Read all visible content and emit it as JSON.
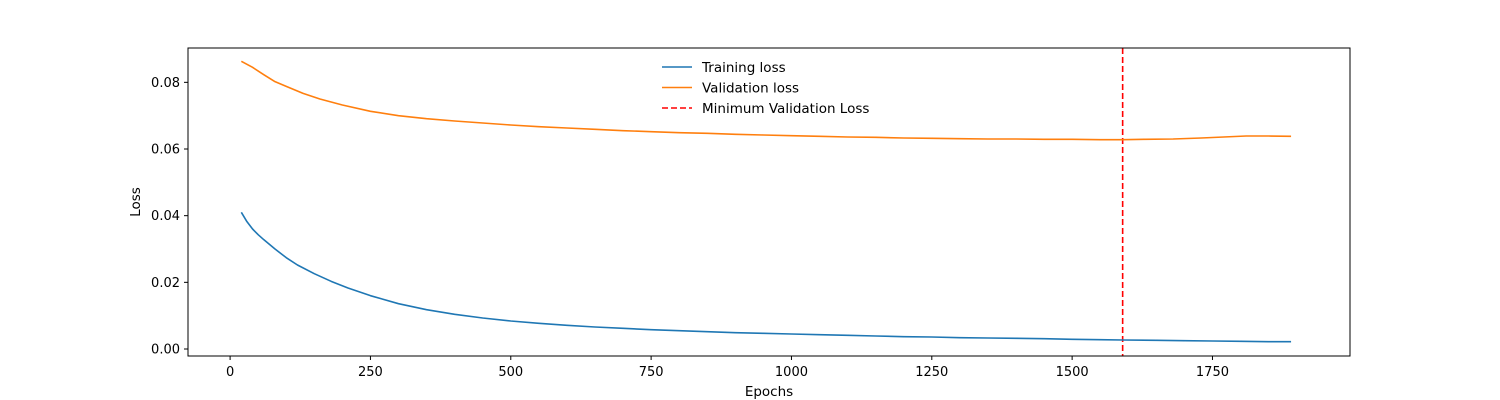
{
  "chart_data": {
    "type": "line",
    "xlabel": "Epochs",
    "ylabel": "Loss",
    "xlim": [
      -75,
      1995
    ],
    "ylim": [
      -0.0021,
      0.0903
    ],
    "xticks": [
      0,
      250,
      500,
      750,
      1000,
      1250,
      1500,
      1750
    ],
    "yticks": [
      0.0,
      0.02,
      0.04,
      0.06,
      0.08
    ],
    "ytick_format": 2,
    "grid": false,
    "legend": {
      "placement": "upper center",
      "frameon": false
    },
    "series": [
      {
        "name": "Training loss",
        "color": "#1f77b4",
        "x": [
          20,
          30,
          40,
          50,
          60,
          80,
          100,
          120,
          150,
          180,
          210,
          250,
          300,
          350,
          400,
          450,
          500,
          550,
          600,
          650,
          700,
          750,
          800,
          850,
          900,
          950,
          1000,
          1050,
          1100,
          1150,
          1200,
          1250,
          1300,
          1350,
          1400,
          1450,
          1500,
          1550,
          1590,
          1650,
          1700,
          1750,
          1800,
          1850,
          1890
        ],
        "y": [
          0.041,
          0.0382,
          0.036,
          0.0343,
          0.0328,
          0.03,
          0.0274,
          0.0252,
          0.0226,
          0.0203,
          0.0183,
          0.016,
          0.0136,
          0.0118,
          0.0104,
          0.0093,
          0.0084,
          0.0077,
          0.0071,
          0.0066,
          0.0062,
          0.0058,
          0.0055,
          0.0052,
          0.0049,
          0.0047,
          0.0045,
          0.0043,
          0.0041,
          0.0039,
          0.0037,
          0.0036,
          0.0034,
          0.0033,
          0.0032,
          0.0031,
          0.0029,
          0.0028,
          0.0027,
          0.0026,
          0.0025,
          0.0024,
          0.0023,
          0.0022,
          0.0022
        ]
      },
      {
        "name": "Validation loss",
        "color": "#ff7f0e",
        "x": [
          20,
          40,
          60,
          80,
          100,
          130,
          160,
          200,
          250,
          300,
          350,
          400,
          450,
          500,
          550,
          600,
          650,
          700,
          750,
          800,
          850,
          900,
          950,
          1000,
          1050,
          1100,
          1150,
          1200,
          1250,
          1300,
          1350,
          1400,
          1450,
          1500,
          1550,
          1590,
          1630,
          1680,
          1730,
          1770,
          1810,
          1850,
          1890
        ],
        "y": [
          0.0863,
          0.0845,
          0.0823,
          0.0802,
          0.0788,
          0.0767,
          0.075,
          0.0732,
          0.0713,
          0.07,
          0.0691,
          0.0684,
          0.0678,
          0.0672,
          0.0667,
          0.0663,
          0.0659,
          0.0655,
          0.0652,
          0.0649,
          0.0647,
          0.0644,
          0.0642,
          0.064,
          0.0638,
          0.0636,
          0.0635,
          0.0633,
          0.0632,
          0.0631,
          0.063,
          0.063,
          0.0629,
          0.0629,
          0.0628,
          0.0628,
          0.0629,
          0.063,
          0.0633,
          0.0636,
          0.0639,
          0.0639,
          0.0638
        ]
      }
    ],
    "vlines": [
      {
        "name": "Minimum Validation Loss",
        "x": 1590,
        "color": "#ff0000",
        "style": "dashed"
      }
    ]
  }
}
